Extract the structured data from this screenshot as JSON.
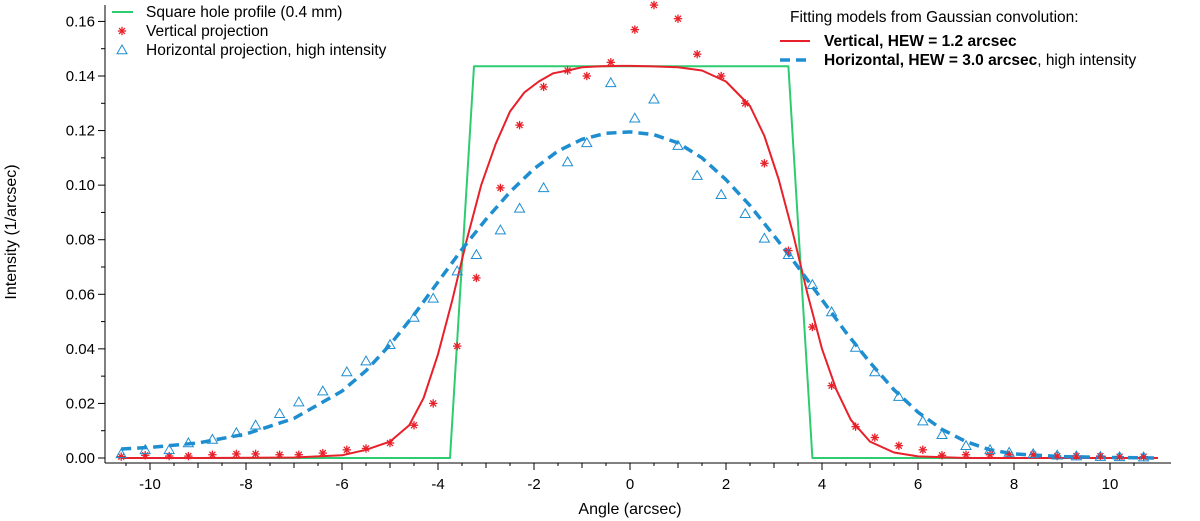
{
  "chart_data": {
    "type": "line",
    "title": "",
    "xlabel": "Angle (arcsec)",
    "ylabel": "Intensity (1/arcsec)",
    "xlim": [
      -11,
      11
    ],
    "ylim": [
      0,
      0.166
    ],
    "x_ticks": [
      -10,
      -8,
      -6,
      -4,
      -2,
      0,
      2,
      4,
      6,
      8,
      10
    ],
    "x_tick_labels": [
      "-10",
      "-8",
      "-6",
      "-4",
      "-2",
      "0",
      "2",
      "4",
      "6",
      "8",
      "10"
    ],
    "y_ticks": [
      0,
      0.02,
      0.04,
      0.06,
      0.08,
      0.1,
      0.12,
      0.14,
      0.16
    ],
    "y_tick_labels": [
      "0.00",
      "0.02",
      "0.04",
      "0.06",
      "0.08",
      "0.10",
      "0.12",
      "0.14",
      "0.16"
    ],
    "legend_left": {
      "placement": "top-left",
      "entries": [
        {
          "label": "Square hole profile (0.4 mm)",
          "series": "square"
        },
        {
          "label": "Vertical projection",
          "series": "vertical_points"
        },
        {
          "label": "Horizontal projection, high intensity",
          "series": "horizontal_points"
        }
      ]
    },
    "legend_right": {
      "placement": "top-right",
      "title": "Fitting models from Gaussian convolution:",
      "entries": [
        {
          "bold": "Vertical, HEW = 1.2 arcsec",
          "rest": "",
          "series": "vertical_fit"
        },
        {
          "bold": "Horizontal, HEW = 3.0 arcsec",
          "rest": ", high intensity",
          "series": "horizontal_fit"
        }
      ]
    },
    "series": [
      {
        "name": "Square hole profile (0.4 mm)",
        "key": "square",
        "style": "line",
        "color": "#2ecc71",
        "x": [
          -10.6,
          -3.75,
          -3.25,
          3.3,
          3.8,
          11
        ],
        "y": [
          0,
          0,
          0.1436,
          0.1436,
          0,
          0
        ]
      },
      {
        "name": "Vertical fit",
        "key": "vertical_fit",
        "style": "line",
        "color": "#e8202a",
        "x": [
          -10.6,
          -9,
          -7,
          -6,
          -5.5,
          -5,
          -4.6,
          -4.3,
          -4,
          -3.7,
          -3.4,
          -3.1,
          -2.8,
          -2.5,
          -2.2,
          -1.9,
          -1.6,
          -1.3,
          -1,
          -0.6,
          -0.2,
          0,
          0.4,
          1,
          1.5,
          2,
          2.5,
          2.8,
          3.1,
          3.4,
          3.7,
          4,
          4.3,
          4.6,
          5,
          5.5,
          6,
          7,
          8,
          9,
          11
        ],
        "y": [
          0,
          0,
          0.0002,
          0.001,
          0.003,
          0.006,
          0.012,
          0.022,
          0.038,
          0.058,
          0.08,
          0.1,
          0.115,
          0.127,
          0.134,
          0.138,
          0.141,
          0.142,
          0.1432,
          0.1436,
          0.1437,
          0.1437,
          0.1436,
          0.1432,
          0.142,
          0.138,
          0.129,
          0.118,
          0.102,
          0.082,
          0.06,
          0.04,
          0.025,
          0.014,
          0.006,
          0.002,
          0.0006,
          0,
          0,
          0,
          0
        ]
      },
      {
        "name": "Horizontal fit",
        "key": "horizontal_fit",
        "style": "dashed",
        "color": "#1e8ed0",
        "x": [
          -10.6,
          -10,
          -9,
          -8,
          -7,
          -6,
          -5.5,
          -5,
          -4.5,
          -4,
          -3.5,
          -3,
          -2.5,
          -2,
          -1.5,
          -1,
          -0.5,
          0,
          0.5,
          1,
          1.5,
          2,
          2.5,
          3,
          3.5,
          4,
          4.5,
          5,
          5.5,
          6,
          6.5,
          7,
          7.5,
          8,
          9,
          10,
          11
        ],
        "y": [
          0.0033,
          0.0039,
          0.0055,
          0.0088,
          0.0145,
          0.0245,
          0.032,
          0.0415,
          0.0525,
          0.0645,
          0.0765,
          0.0875,
          0.0975,
          0.106,
          0.1125,
          0.1168,
          0.119,
          0.1195,
          0.1185,
          0.1155,
          0.11,
          0.102,
          0.0925,
          0.0815,
          0.07,
          0.058,
          0.046,
          0.035,
          0.025,
          0.0168,
          0.0105,
          0.006,
          0.003,
          0.0015,
          0.0005,
          0.0002,
          0
        ]
      },
      {
        "name": "Vertical projection",
        "key": "vertical_points",
        "style": "asterisk",
        "color": "#e8202a",
        "x": [
          -10.6,
          -10.1,
          -9.6,
          -9.2,
          -8.7,
          -8.2,
          -7.8,
          -7.3,
          -6.9,
          -6.4,
          -5.9,
          -5.5,
          -5.0,
          -4.5,
          -4.1,
          -3.6,
          -3.2,
          -2.7,
          -2.3,
          -1.8,
          -1.3,
          -0.9,
          -0.4,
          0.1,
          0.5,
          1.0,
          1.4,
          1.9,
          2.4,
          2.8,
          3.3,
          3.8,
          4.2,
          4.7,
          5.1,
          5.6,
          6.1,
          6.5,
          7.0,
          7.5,
          7.9,
          8.4,
          8.9,
          9.3,
          9.8,
          10.2,
          10.7
        ],
        "y": [
          0.0005,
          0.001,
          0.0007,
          0.0007,
          0.0012,
          0.0015,
          0.0015,
          0.0012,
          0.0012,
          0.0018,
          0.003,
          0.0035,
          0.0055,
          0.012,
          0.02,
          0.041,
          0.066,
          0.099,
          0.122,
          0.136,
          0.142,
          0.14,
          0.145,
          0.157,
          0.166,
          0.161,
          0.148,
          0.14,
          0.13,
          0.108,
          0.076,
          0.048,
          0.0265,
          0.0115,
          0.0075,
          0.0045,
          0.003,
          0.001,
          0.0012,
          0.0012,
          0.0012,
          0.0012,
          0.0007,
          0.0007,
          0.0007,
          0.0005,
          0.0005
        ]
      },
      {
        "name": "Horizontal projection, high intensity",
        "key": "horizontal_points",
        "style": "triangle",
        "color": "#1e8ed0",
        "x": [
          -10.6,
          -10.1,
          -9.6,
          -9.2,
          -8.7,
          -8.2,
          -7.8,
          -7.3,
          -6.9,
          -6.4,
          -5.9,
          -5.5,
          -5.0,
          -4.5,
          -4.1,
          -3.6,
          -3.2,
          -2.7,
          -2.3,
          -1.8,
          -1.3,
          -0.9,
          -0.4,
          0.1,
          0.5,
          1.0,
          1.4,
          1.9,
          2.4,
          2.8,
          3.3,
          3.8,
          4.2,
          4.7,
          5.1,
          5.6,
          6.1,
          6.5,
          7.0,
          7.5,
          7.9,
          8.4,
          8.9,
          9.3,
          9.8,
          10.2,
          10.7
        ],
        "y": [
          0.0015,
          0.003,
          0.003,
          0.0055,
          0.0068,
          0.0092,
          0.012,
          0.0162,
          0.0205,
          0.0245,
          0.0315,
          0.0355,
          0.0415,
          0.0515,
          0.0585,
          0.0685,
          0.0745,
          0.0835,
          0.0915,
          0.099,
          0.1085,
          0.1155,
          0.1375,
          0.1245,
          0.1315,
          0.1145,
          0.1035,
          0.0965,
          0.0895,
          0.0805,
          0.0745,
          0.0635,
          0.0535,
          0.0405,
          0.0315,
          0.0225,
          0.0135,
          0.0085,
          0.0045,
          0.003,
          0.002,
          0.0015,
          0.001,
          0.0007,
          0.0005,
          0.0004,
          0.0003
        ]
      }
    ]
  }
}
